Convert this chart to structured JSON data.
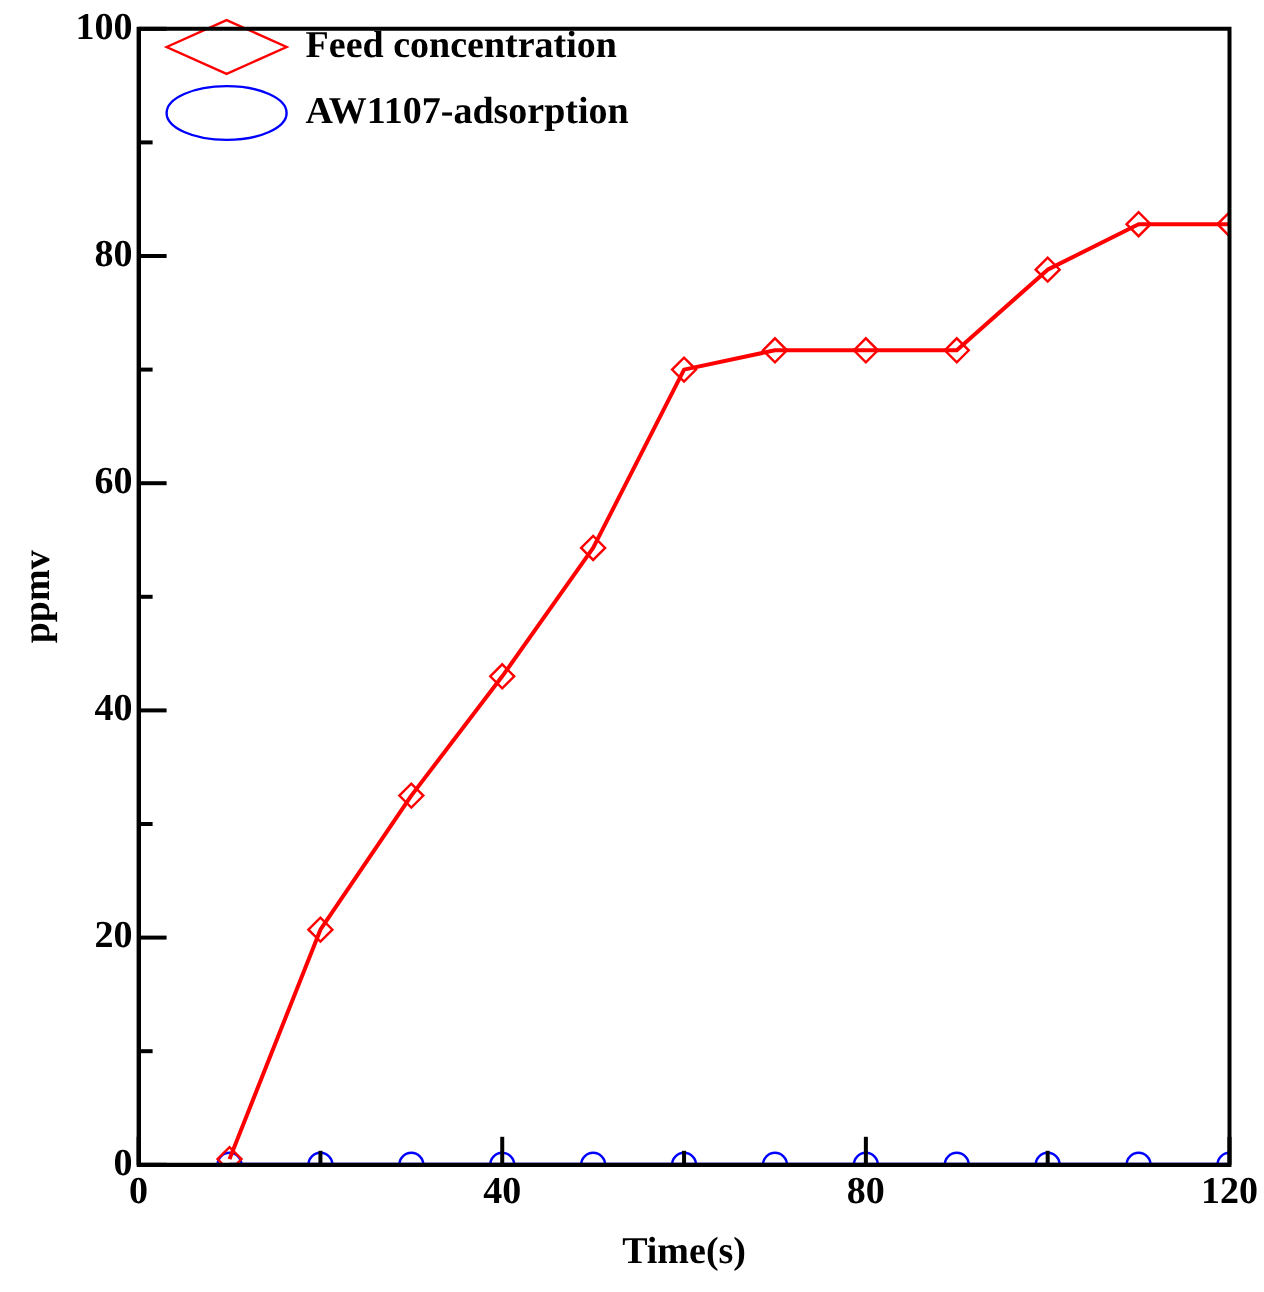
{
  "chart_data": {
    "type": "line",
    "xlabel": "Time(s)",
    "ylabel": "ppmv",
    "x": [
      10,
      20,
      30,
      40,
      50,
      60,
      70,
      80,
      90,
      100,
      110,
      120
    ],
    "series": [
      {
        "name": "Feed concentration",
        "color": "#ff0000",
        "marker": "diamond",
        "values": [
          0.5,
          20.7,
          32.5,
          43,
          54.3,
          70,
          71.7,
          71.7,
          71.7,
          78.8,
          82.8,
          82.8
        ]
      },
      {
        "name": "AW1107-adsorption",
        "color": "#0000ff",
        "marker": "circle",
        "values": [
          0,
          0,
          0,
          0,
          0,
          0,
          0,
          0,
          0,
          0,
          0,
          0
        ]
      }
    ],
    "xlim": [
      0,
      120
    ],
    "xticks": [
      0,
      {
        "value": 20,
        "label": null
      },
      40,
      {
        "value": 60,
        "label": null
      },
      80,
      {
        "value": 100,
        "label": null
      },
      120
    ],
    "ylim": [
      0,
      100
    ],
    "yticks": [
      0,
      {
        "value": 10,
        "label": null
      },
      20,
      {
        "value": 30,
        "label": null
      },
      40,
      {
        "value": 50,
        "label": null
      },
      60,
      {
        "value": 70,
        "label": null
      },
      80,
      {
        "value": 90,
        "label": null
      },
      100
    ],
    "grid": false,
    "legend": "top left",
    "line_style": "solid"
  }
}
